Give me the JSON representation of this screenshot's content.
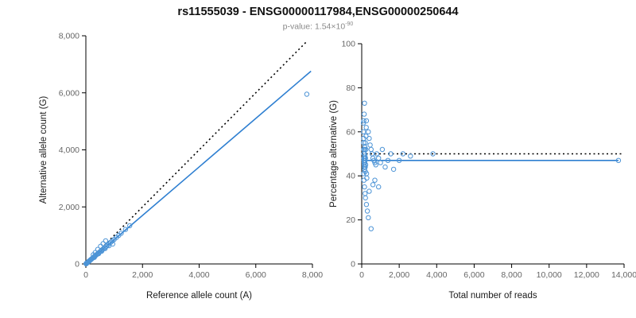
{
  "title": "rs11555039 - ENSG00000117984,ENSG00000250644",
  "subtitle": {
    "base": "p-value: 1.54×10",
    "exponent": "-90"
  },
  "colors": {
    "point": "#4D94D6",
    "fit_line": "#2E7FD1",
    "identity_line": "#000000",
    "tick_text": "#666666",
    "axis_text": "#1a1a1a"
  },
  "chart_data": [
    {
      "type": "scatter",
      "name": "allele-counts",
      "xlabel": "Reference allele count (A)",
      "ylabel": "Alternative allele count (G)",
      "xlim": [
        0,
        8000
      ],
      "ylim": [
        0,
        8000
      ],
      "grid": false,
      "xticks": [
        {
          "v": 0,
          "label": "0"
        },
        {
          "v": 2000,
          "label": "2,000"
        },
        {
          "v": 4000,
          "label": "4,000"
        },
        {
          "v": 6000,
          "label": "6,000"
        },
        {
          "v": 8000,
          "label": "8,000"
        }
      ],
      "yticks": [
        {
          "v": 0,
          "label": "0"
        },
        {
          "v": 2000,
          "label": "2,000"
        },
        {
          "v": 4000,
          "label": "4,000"
        },
        {
          "v": 6000,
          "label": "6,000"
        },
        {
          "v": 8000,
          "label": "8,000"
        }
      ],
      "lines": [
        {
          "x1": 0,
          "y1": 0,
          "x2": 7800,
          "y2": 7800,
          "style": "dotted",
          "color": "#000000"
        },
        {
          "x1": 0,
          "y1": 0,
          "x2": 7950,
          "y2": 6760,
          "style": "solid",
          "color": "#2E7FD1"
        }
      ],
      "points": [
        [
          8,
          6
        ],
        [
          12,
          10
        ],
        [
          15,
          13
        ],
        [
          20,
          16
        ],
        [
          22,
          20
        ],
        [
          28,
          24
        ],
        [
          32,
          28
        ],
        [
          38,
          33
        ],
        [
          45,
          38
        ],
        [
          50,
          44
        ],
        [
          58,
          50
        ],
        [
          65,
          56
        ],
        [
          72,
          62
        ],
        [
          80,
          70
        ],
        [
          90,
          78
        ],
        [
          100,
          86
        ],
        [
          110,
          96
        ],
        [
          120,
          104
        ],
        [
          132,
          114
        ],
        [
          145,
          125
        ],
        [
          158,
          136
        ],
        [
          172,
          148
        ],
        [
          188,
          162
        ],
        [
          205,
          176
        ],
        [
          225,
          194
        ],
        [
          245,
          210
        ],
        [
          265,
          228
        ],
        [
          290,
          250
        ],
        [
          315,
          270
        ],
        [
          340,
          292
        ],
        [
          370,
          318
        ],
        [
          400,
          345
        ],
        [
          430,
          370
        ],
        [
          465,
          400
        ],
        [
          500,
          430
        ],
        [
          540,
          465
        ],
        [
          580,
          500
        ],
        [
          625,
          540
        ],
        [
          670,
          580
        ],
        [
          720,
          620
        ],
        [
          770,
          665
        ],
        [
          820,
          710
        ],
        [
          880,
          760
        ],
        [
          940,
          810
        ],
        [
          1000,
          862
        ],
        [
          1080,
          930
        ],
        [
          1160,
          1000
        ],
        [
          1250,
          1080
        ],
        [
          1400,
          1210
        ],
        [
          1550,
          1340
        ],
        [
          260,
          320
        ],
        [
          330,
          400
        ],
        [
          420,
          510
        ],
        [
          520,
          620
        ],
        [
          610,
          710
        ],
        [
          700,
          810
        ],
        [
          300,
          230
        ],
        [
          450,
          360
        ],
        [
          560,
          450
        ],
        [
          680,
          540
        ],
        [
          820,
          640
        ],
        [
          950,
          700
        ],
        [
          7800,
          5950
        ]
      ]
    },
    {
      "type": "scatter",
      "name": "percentage-vs-reads",
      "xlabel": "Total number of reads",
      "ylabel": "Percentage alternative (G)",
      "xlim": [
        0,
        14000
      ],
      "ylim": [
        0,
        100
      ],
      "grid": false,
      "xticks": [
        {
          "v": 0,
          "label": "0"
        },
        {
          "v": 2000,
          "label": "2,000"
        },
        {
          "v": 4000,
          "label": "4,000"
        },
        {
          "v": 6000,
          "label": "6,000"
        },
        {
          "v": 8000,
          "label": "8,000"
        },
        {
          "v": 10000,
          "label": "10,000"
        },
        {
          "v": 12000,
          "label": "12,000"
        },
        {
          "v": 14000,
          "label": "14,000"
        }
      ],
      "yticks": [
        {
          "v": 0,
          "label": "0"
        },
        {
          "v": 20,
          "label": "20"
        },
        {
          "v": 40,
          "label": "40"
        },
        {
          "v": 60,
          "label": "60"
        },
        {
          "v": 80,
          "label": "80"
        },
        {
          "v": 100,
          "label": "100"
        }
      ],
      "lines": [
        {
          "x1": 0,
          "y1": 50,
          "x2": 13900,
          "y2": 50,
          "style": "dotted",
          "color": "#000000"
        },
        {
          "x1": 0,
          "y1": 47,
          "x2": 13700,
          "y2": 47,
          "style": "solid",
          "color": "#2E7FD1"
        }
      ],
      "points": [
        [
          90,
          64
        ],
        [
          95,
          60
        ],
        [
          100,
          57
        ],
        [
          105,
          55
        ],
        [
          110,
          52
        ],
        [
          115,
          50
        ],
        [
          120,
          48
        ],
        [
          125,
          47
        ],
        [
          130,
          46
        ],
        [
          135,
          45
        ],
        [
          140,
          44
        ],
        [
          145,
          43
        ],
        [
          150,
          50
        ],
        [
          155,
          52
        ],
        [
          160,
          48
        ],
        [
          165,
          46
        ],
        [
          170,
          53
        ],
        [
          175,
          49
        ],
        [
          180,
          47
        ],
        [
          185,
          44
        ],
        [
          190,
          42
        ],
        [
          195,
          55
        ],
        [
          200,
          48
        ],
        [
          210,
          45
        ],
        [
          220,
          52
        ],
        [
          230,
          58
        ],
        [
          240,
          62
        ],
        [
          150,
          73
        ],
        [
          250,
          65
        ],
        [
          260,
          41
        ],
        [
          270,
          39
        ],
        [
          130,
          68
        ],
        [
          110,
          65
        ],
        [
          100,
          41
        ],
        [
          120,
          38
        ],
        [
          180,
          32
        ],
        [
          150,
          35
        ],
        [
          200,
          30
        ],
        [
          250,
          27
        ],
        [
          300,
          24
        ],
        [
          350,
          21
        ],
        [
          500,
          16
        ],
        [
          400,
          33
        ],
        [
          600,
          36
        ],
        [
          700,
          38
        ],
        [
          900,
          35
        ],
        [
          350,
          60
        ],
        [
          400,
          57
        ],
        [
          450,
          54
        ],
        [
          500,
          52
        ],
        [
          550,
          50
        ],
        [
          600,
          48
        ],
        [
          650,
          47
        ],
        [
          700,
          46
        ],
        [
          750,
          45
        ],
        [
          800,
          50
        ],
        [
          900,
          48
        ],
        [
          1000,
          46
        ],
        [
          1100,
          52
        ],
        [
          1250,
          44
        ],
        [
          1400,
          47
        ],
        [
          1550,
          50
        ],
        [
          1700,
          43
        ],
        [
          2000,
          47
        ],
        [
          2200,
          50
        ],
        [
          2600,
          49
        ],
        [
          3800,
          50
        ],
        [
          13700,
          47
        ]
      ]
    }
  ]
}
